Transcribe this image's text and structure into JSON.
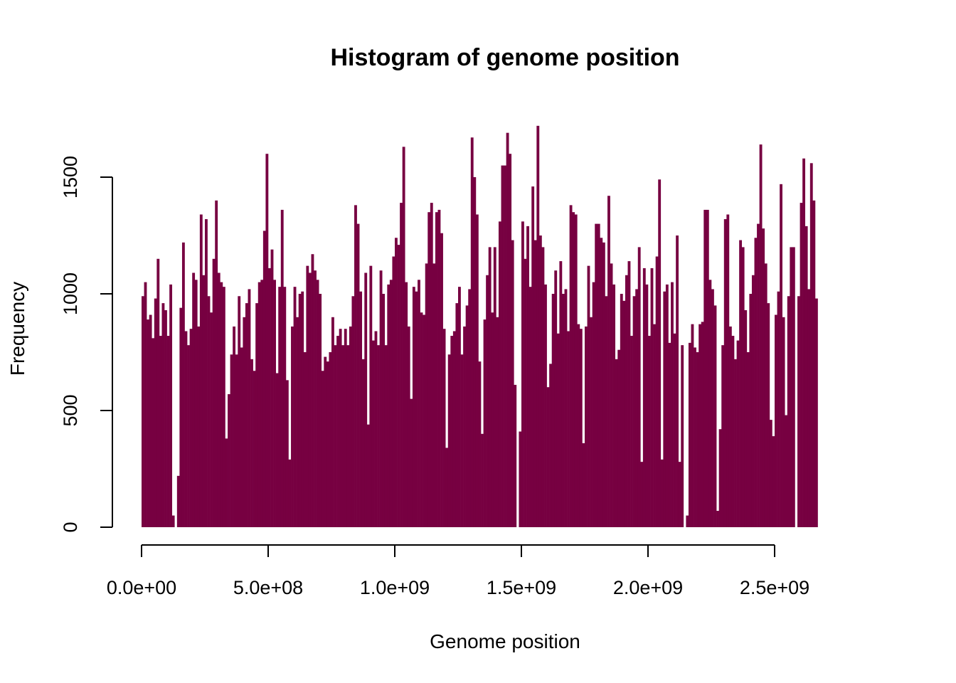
{
  "chart_data": {
    "type": "bar",
    "title": "Histogram of genome position",
    "xlabel": "Genome position",
    "ylabel": "Frequency",
    "bar_color": "#770041",
    "x_ticks": [
      {
        "value": 0,
        "label": "0.0e+00"
      },
      {
        "value": 500000000,
        "label": "5.0e+08"
      },
      {
        "value": 1000000000,
        "label": "1.0e+09"
      },
      {
        "value": 1500000000,
        "label": "1.5e+09"
      },
      {
        "value": 2000000000,
        "label": "2.0e+09"
      },
      {
        "value": 2500000000,
        "label": "2.5e+09"
      }
    ],
    "y_ticks": [
      {
        "value": 0,
        "label": "0"
      },
      {
        "value": 500,
        "label": "500"
      },
      {
        "value": 1000,
        "label": "1000"
      },
      {
        "value": 1500,
        "label": "1500"
      }
    ],
    "xlim": [
      0,
      2870000000
    ],
    "ylim": [
      0,
      1720
    ],
    "bin_width": 10000000,
    "values": [
      990,
      1050,
      890,
      910,
      810,
      980,
      1150,
      820,
      960,
      930,
      820,
      1040,
      50,
      0,
      220,
      940,
      1220,
      840,
      780,
      850,
      1090,
      1060,
      860,
      1340,
      1080,
      1320,
      990,
      920,
      1150,
      1400,
      1090,
      1050,
      1030,
      380,
      570,
      740,
      860,
      740,
      990,
      770,
      900,
      960,
      1020,
      720,
      670,
      960,
      1050,
      1060,
      1270,
      1600,
      1110,
      1190,
      1060,
      660,
      1030,
      1360,
      1030,
      630,
      290,
      860,
      1030,
      900,
      1000,
      1010,
      750,
      1120,
      1090,
      1170,
      1100,
      1060,
      1000,
      670,
      730,
      710,
      750,
      900,
      780,
      820,
      850,
      780,
      850,
      780,
      860,
      990,
      1380,
      1300,
      1010,
      720,
      1090,
      440,
      1120,
      800,
      840,
      780,
      1100,
      1000,
      780,
      1040,
      1060,
      1160,
      1240,
      1210,
      1390,
      1630,
      1050,
      860,
      550,
      1030,
      1010,
      1060,
      920,
      910,
      1130,
      1350,
      1390,
      1130,
      1350,
      1360,
      1260,
      850,
      340,
      740,
      820,
      840,
      960,
      1030,
      740,
      860,
      950,
      1020,
      1670,
      1500,
      1340,
      710,
      400,
      890,
      1080,
      1200,
      920,
      1200,
      900,
      1310,
      1550,
      1550,
      1690,
      1600,
      1230,
      610,
      0,
      410,
      1310,
      1150,
      1290,
      1030,
      1460,
      1230,
      1720,
      1250,
      1200,
      1040,
      600,
      700,
      1000,
      1100,
      830,
      1140,
      1000,
      1020,
      840,
      1380,
      1350,
      1340,
      870,
      850,
      360,
      860,
      1120,
      900,
      1050,
      1300,
      1300,
      1240,
      1220,
      990,
      1420,
      1130,
      1040,
      720,
      760,
      1000,
      970,
      1080,
      1140,
      820,
      990,
      1020,
      1200,
      280,
      1110,
      1040,
      820,
      1110,
      870,
      1160,
      1490,
      290,
      1010,
      1040,
      790,
      1050,
      830,
      1250,
      280,
      780,
      0,
      50,
      790,
      870,
      770,
      750,
      870,
      880,
      1360,
      1360,
      1060,
      1020,
      950,
      70,
      420,
      780,
      1320,
      1340,
      860,
      820,
      720,
      800,
      1230,
      1200,
      930,
      750,
      1000,
      1080,
      1240,
      1300,
      1640,
      1280,
      1130,
      960,
      460,
      390,
      910,
      1010,
      1470,
      900,
      480,
      990,
      1200,
      1200,
      0,
      990,
      1390,
      1580,
      1290,
      1020,
      1560,
      1400,
      980
    ]
  }
}
